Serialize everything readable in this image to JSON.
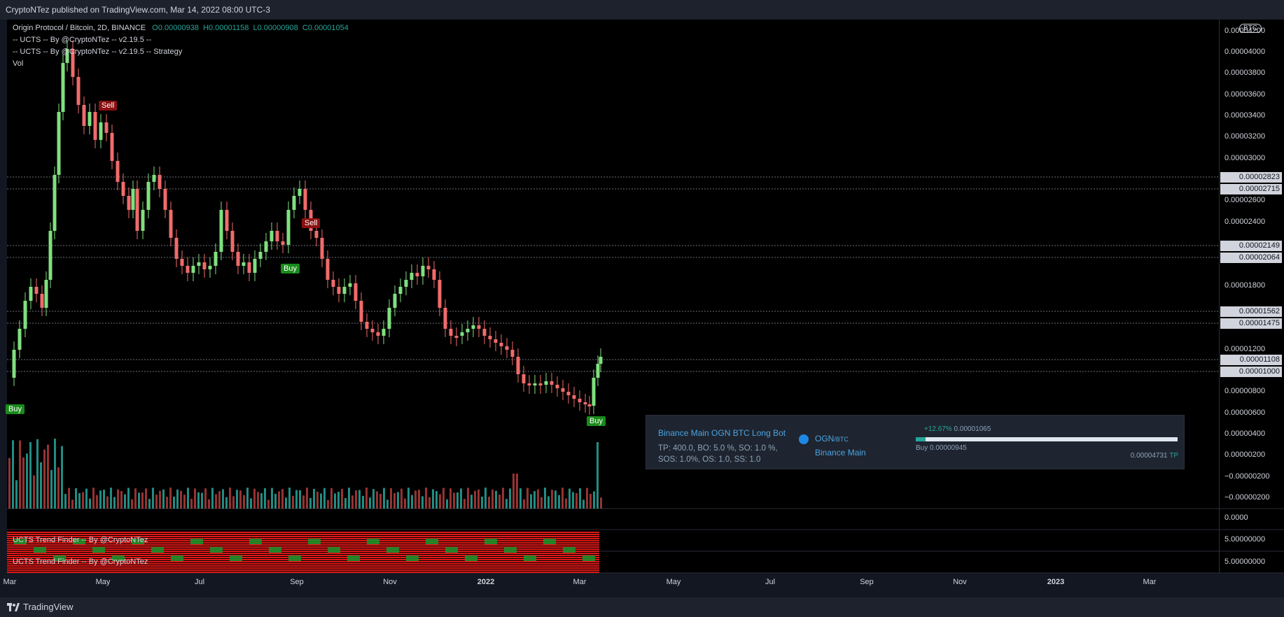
{
  "header": {
    "publisher": "CryptoNTez published on TradingView.com, Mar 14, 2022 08:00 UTC-3"
  },
  "legend": {
    "symbol": "Origin Protocol / Bitcoin, 2D, BINANCE",
    "open": "O0.00000938",
    "high": "H0.00001158",
    "low": "L0.00000908",
    "close": "C0.00001054",
    "indicator1": "-- UCTS -- By @CryptoNTez -- v2.19.5 --",
    "indicator2": "-- UCTS -- By @CryptoNTez -- v2.19.5 -- Strategy",
    "vol": "Vol"
  },
  "axis": {
    "currency": "BTC",
    "labels": [
      "0.00004200",
      "0.00004000",
      "0.00003800",
      "0.00003600",
      "0.00003400",
      "0.00003200",
      "0.00003000",
      "0.00002600",
      "0.00002400",
      "0.00001800",
      "0.00001200",
      "0.00000800",
      "0.00000600",
      "0.00000400",
      "0.00000200",
      "−0.00000200",
      "−0.00000200"
    ],
    "highlighted": [
      "0.00002823",
      "0.00002715",
      "0.00002149",
      "0.00002064",
      "0.00001562",
      "0.00001475",
      "0.00001108",
      "0.00001000"
    ],
    "sub_labels": [
      "0.0000",
      "5.00000000",
      "5.00000000"
    ]
  },
  "signals": {
    "buy": "Buy",
    "sell": "Sell"
  },
  "bot": {
    "name": "Binance Main OGN BTC Long Bot",
    "params_line1": "TP: 400.0, BO: 5.0 %, SO: 1.0 %,",
    "params_line2": "SOS: 1.0%, OS: 1.0, SS: 1.0",
    "pair": "OGN",
    "pair_quote": "/BTC",
    "exchange": "Binance Main",
    "pct": "+12.67%",
    "current": "0.00001065",
    "buy_label": "Buy 0.00000945",
    "tp_value": "0.00004731",
    "tp_label": "TP"
  },
  "indicators": {
    "trend1": "UCTS Trend Finder -- By @CryptoNTez",
    "trend2": "UCTS Trend Finder -- By @CryptoNTez"
  },
  "xaxis": [
    "Mar",
    "May",
    "Jul",
    "Sep",
    "Nov",
    "2022",
    "Mar",
    "May",
    "Jul",
    "Sep",
    "Nov",
    "2023",
    "Mar"
  ],
  "footer": {
    "brand": "TradingView"
  },
  "colors": {
    "up": "#26a69a",
    "down": "#ef5350",
    "background": "#000000",
    "bull_candle": "#7fe07f",
    "bear_candle": "#f06b6b"
  }
}
